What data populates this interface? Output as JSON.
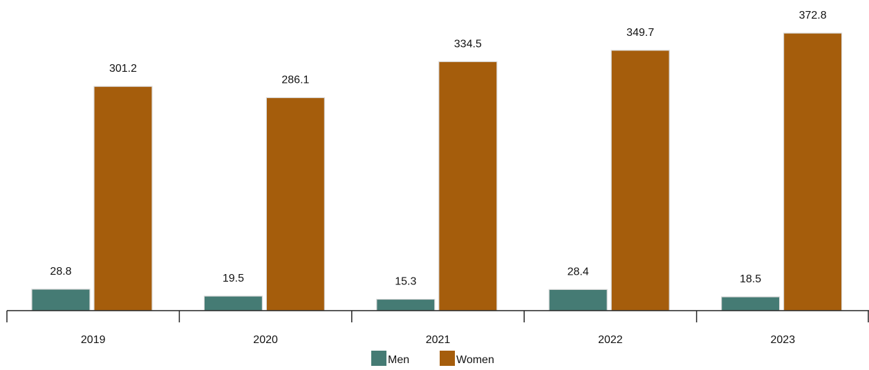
{
  "chart_data": {
    "type": "bar",
    "title": "",
    "xlabel": "",
    "ylabel": "",
    "categories": [
      "2019",
      "2020",
      "2021",
      "2022",
      "2023"
    ],
    "series": [
      {
        "name": "Men",
        "color": "#457b74",
        "values": [
          28.8,
          19.5,
          15.3,
          28.4,
          18.5
        ],
        "labels": [
          "28.8",
          "19.5",
          "15.3",
          "28.4",
          "18.5"
        ]
      },
      {
        "name": "Women",
        "color": "#a55d0c",
        "values": [
          301.2,
          286.1,
          334.5,
          349.7,
          372.8
        ],
        "labels": [
          "301.2",
          "286.1",
          "334.5",
          "349.7",
          "372.8"
        ]
      }
    ],
    "ylim": [
      0,
      372.8
    ],
    "grid": false,
    "legend": {
      "position": "bottom-center",
      "items": [
        {
          "label": "Men",
          "color": "#457b74"
        },
        {
          "label": "Women",
          "color": "#a55d0c"
        }
      ]
    }
  }
}
